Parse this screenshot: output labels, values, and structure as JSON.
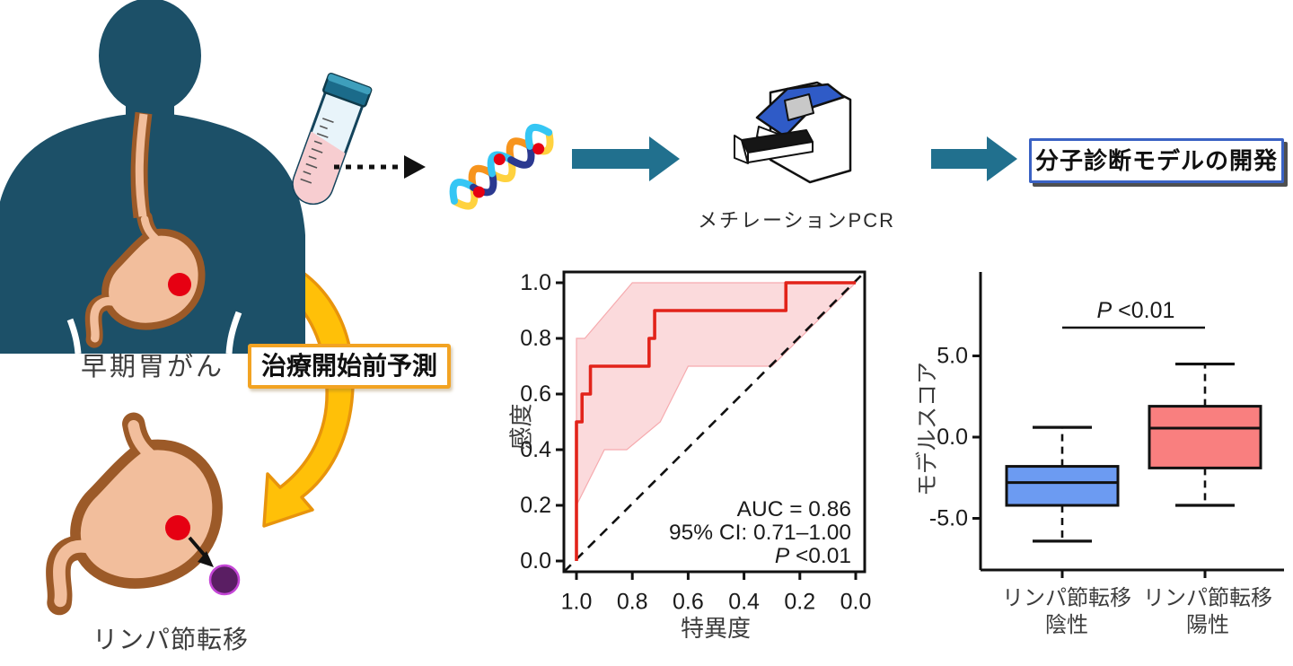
{
  "illustration": {
    "patient_label": "早期胃がん",
    "prediction_label": "治療開始前予測",
    "metastasis_label": "リンパ節転移",
    "pcr_label": "メチレーションPCR",
    "outcome_label": "分子診断モデルの開発"
  },
  "colors": {
    "body_silhouette": "#1C5068",
    "stomach_fill": "#F2BE9C",
    "stomach_outline": "#9C5A28",
    "tumor_red": "#E60012",
    "lymph_node_purple": "#5A1E63",
    "lymph_node_outline": "#C445D6",
    "flow_arrow_teal": "#21708E",
    "prediction_arrow_yellow": "#FFC008",
    "prediction_arrow_outline": "#E8940C",
    "prediction_box_border": "#F2A323",
    "outcome_box_border": "#3A62C4",
    "roc_curve_red": "#E2231A",
    "roc_band_pink": "#FBDADC",
    "box_negative_blue": "#6C9BF2",
    "box_positive_red": "#F97F7F"
  },
  "chart_data": [
    {
      "type": "line",
      "name": "roc-curve-plot",
      "xlabel": "特異度",
      "ylabel": "感度",
      "x_ticks": [
        1.0,
        0.8,
        0.6,
        0.4,
        0.2,
        0.0
      ],
      "y_ticks": [
        0.0,
        0.2,
        0.4,
        0.6,
        0.8,
        1.0
      ],
      "x_reversed": true,
      "diagonal_reference": true,
      "roc_curve": [
        [
          1.0,
          0.0
        ],
        [
          1.0,
          0.5
        ],
        [
          0.98,
          0.5
        ],
        [
          0.98,
          0.6
        ],
        [
          0.95,
          0.6
        ],
        [
          0.95,
          0.7
        ],
        [
          0.74,
          0.7
        ],
        [
          0.74,
          0.8
        ],
        [
          0.72,
          0.8
        ],
        [
          0.72,
          0.9
        ],
        [
          0.25,
          0.9
        ],
        [
          0.25,
          1.0
        ],
        [
          0.0,
          1.0
        ]
      ],
      "ci_lower": [
        [
          1.0,
          0.2
        ],
        [
          0.9,
          0.4
        ],
        [
          0.82,
          0.4
        ],
        [
          0.7,
          0.5
        ],
        [
          0.6,
          0.7
        ],
        [
          0.3,
          0.7
        ],
        [
          0.0,
          1.0
        ]
      ],
      "ci_upper": [
        [
          1.0,
          0.8
        ],
        [
          0.97,
          0.8
        ],
        [
          0.8,
          1.0
        ],
        [
          0.25,
          1.0
        ],
        [
          0.0,
          1.0
        ]
      ],
      "annotations": [
        {
          "text": "AUC = 0.86"
        },
        {
          "text": "95% CI: 0.71–1.00"
        },
        {
          "italic": "P",
          "text": " <0.01"
        }
      ]
    },
    {
      "type": "boxplot",
      "name": "model-score-boxplot",
      "ylabel": "モデルスコア",
      "y_ticks": [
        5.0,
        0.0,
        -5.0
      ],
      "ylim": [
        -8.3,
        10.2
      ],
      "categories": [
        {
          "line1": "リンパ節転移",
          "line2": "陰性"
        },
        {
          "line1": "リンパ節転移",
          "line2": "陽性"
        }
      ],
      "series": [
        {
          "name": "リンパ節転移陰性",
          "whisker_low": -6.4,
          "q1": -4.2,
          "median": -2.8,
          "q3": -1.8,
          "whisker_high": 0.6,
          "color": "#6C9BF2"
        },
        {
          "name": "リンパ節転移陽性",
          "whisker_low": -4.2,
          "q1": -1.9,
          "median": 0.55,
          "q3": 1.9,
          "whisker_high": 4.5,
          "color": "#F97F7F"
        }
      ],
      "significance": {
        "italic": "P",
        "text": " <0.01"
      }
    }
  ]
}
